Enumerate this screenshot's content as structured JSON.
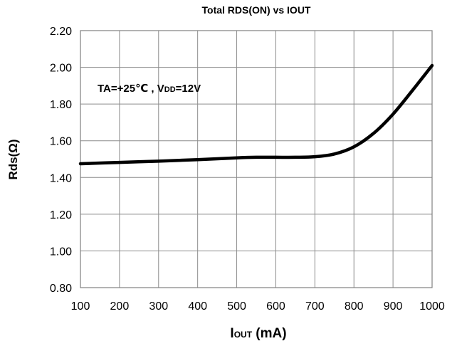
{
  "chart_data": {
    "type": "line",
    "title": "Total RDS(ON)  vs  IOUT",
    "xlabel": {
      "main": "I",
      "sub": "OUT",
      "unit": " (mA)"
    },
    "ylabel": "Rds(Ω)",
    "annotation": {
      "part1": "TA=+25℃ , V",
      "sub": "DD",
      "part2": "=12V"
    },
    "xlim": [
      100,
      1000
    ],
    "ylim": [
      0.8,
      2.2
    ],
    "xticks": [
      100,
      200,
      300,
      400,
      500,
      600,
      700,
      800,
      900,
      1000
    ],
    "yticks": [
      "0.80",
      "1.00",
      "1.20",
      "1.40",
      "1.60",
      "1.80",
      "2.00",
      "2.20"
    ],
    "grid": true,
    "line_color": "#000000",
    "series": [
      {
        "x": [
          100,
          200,
          300,
          400,
          500,
          550,
          600,
          650,
          700,
          750,
          800,
          850,
          900,
          950,
          1000
        ],
        "y": [
          1.475,
          1.482,
          1.489,
          1.497,
          1.507,
          1.51,
          1.51,
          1.51,
          1.513,
          1.528,
          1.567,
          1.64,
          1.745,
          1.875,
          2.01
        ]
      }
    ]
  }
}
